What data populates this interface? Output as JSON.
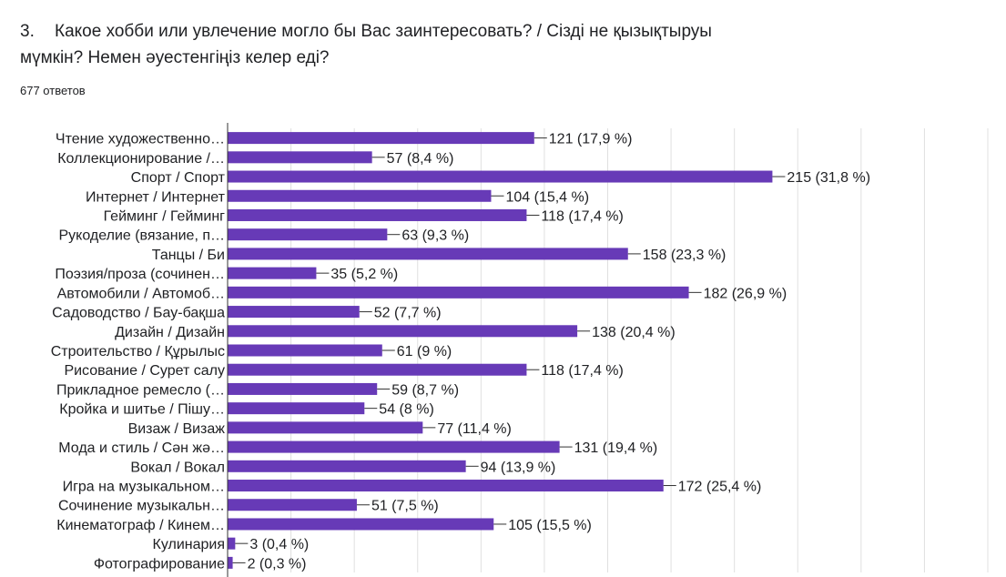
{
  "question": {
    "number": "3.",
    "text": "Какое хобби или увлечение могло бы Вас заинтересовать?  /  Сізді не қызықтыруы мүмкін? Немен  әуестенгіңіз келер еді?"
  },
  "response_count": "677 ответов",
  "colors": {
    "bar": "#673ab7",
    "grid": "#e0e0e0",
    "axis": "#333333",
    "leader": "#333333"
  },
  "chart_data": {
    "type": "bar",
    "orientation": "horizontal",
    "title": "",
    "xlabel": "",
    "ylabel": "",
    "xlim": [
      0,
      300
    ],
    "grid": true,
    "legend": "none",
    "categories": [
      "Чтение художественно…",
      "Коллекционирование /…",
      "Спорт / Спорт",
      "Интернет / Интернет",
      "Гейминг / Гейминг",
      "Рукоделие (вязание, п…",
      "Танцы / Би",
      "Поэзия/проза (сочинен…",
      "Автомобили / Автомоб…",
      "Садоводство / Бау-бақша",
      "Дизайн / Дизайн",
      "Строительство / Құрылыс",
      "Рисование / Сурет салу",
      "Прикладное ремесло (…",
      "Кройка и шитье / Пішу…",
      "Визаж / Визаж",
      "Мода и стиль / Сән жә…",
      "Вокал / Вокал",
      "Игра на музыкальном…",
      "Сочинение музыкальн…",
      "Кинематограф / Кинем…",
      "Кулинария",
      "Фотографирование"
    ],
    "values": [
      121,
      57,
      215,
      104,
      118,
      63,
      158,
      35,
      182,
      52,
      138,
      61,
      118,
      59,
      54,
      77,
      131,
      94,
      172,
      51,
      105,
      3,
      2
    ],
    "labels": [
      "121 (17,9 %)",
      "57 (8,4 %)",
      "215 (31,8 %)",
      "104 (15,4 %)",
      "118 (17,4 %)",
      "63 (9,3 %)",
      "158 (23,3 %)",
      "35 (5,2 %)",
      "182 (26,9 %)",
      "52 (7,7 %)",
      "138 (20,4 %)",
      "61 (9 %)",
      "118 (17,4 %)",
      "59 (8,7 %)",
      "54 (8 %)",
      "77 (11,4 %)",
      "131 (19,4 %)",
      "94 (13,9 %)",
      "172 (25,4 %)",
      "51 (7,5 %)",
      "105 (15,5 %)",
      "3 (0,4 %)",
      "2 (0,3 %)"
    ]
  }
}
